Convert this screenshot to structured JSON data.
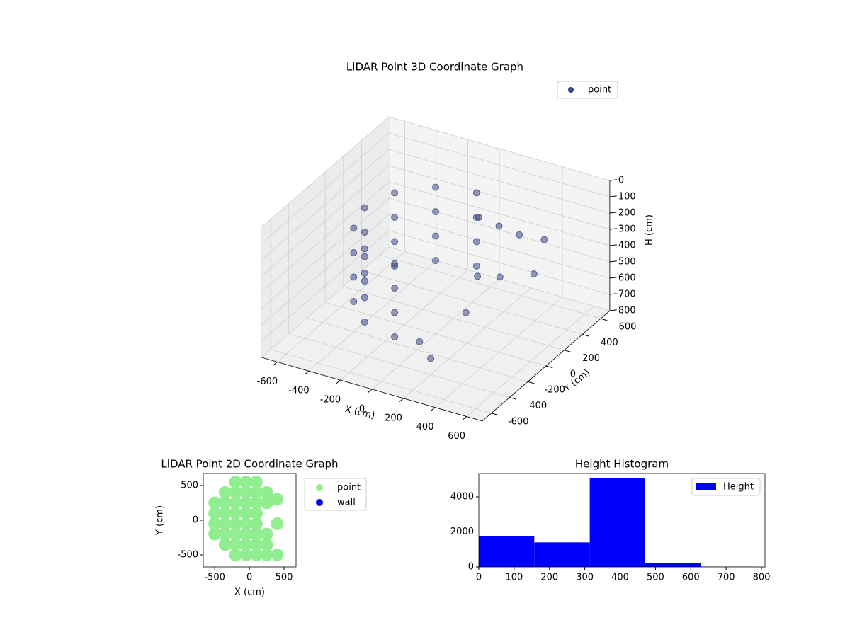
{
  "chart_data": [
    {
      "type": "scatter3d",
      "title": "LiDAR Point 3D Coordinate Graph",
      "xlabel": "X (cm)",
      "ylabel": "Y (cm)",
      "zlabel": "H (cm)",
      "series": [
        {
          "name": "point",
          "color": "#3e4a89",
          "x": [
            0,
            -225,
            -390,
            -450,
            -390,
            -225,
            0,
            0,
            -225,
            -390,
            -450,
            -390,
            -225,
            0,
            0,
            -225,
            -390,
            -450,
            -390,
            -225,
            0,
            0,
            -225,
            -390,
            -450,
            -390,
            -225,
            0,
            100,
            200,
            300,
            400,
            150,
            250,
            350,
            450,
            100,
            200
          ],
          "y": [
            450,
            390,
            225,
            0,
            -225,
            -390,
            -450,
            450,
            390,
            225,
            0,
            -225,
            -390,
            -450,
            450,
            390,
            225,
            0,
            -225,
            -390,
            -450,
            450,
            390,
            225,
            0,
            -225,
            -390,
            -450,
            300,
            350,
            400,
            500,
            200,
            -100,
            100,
            300,
            -350,
            -400
          ],
          "z": [
            150,
            150,
            150,
            150,
            150,
            150,
            150,
            300,
            300,
            300,
            300,
            300,
            300,
            300,
            450,
            450,
            450,
            450,
            450,
            450,
            450,
            600,
            600,
            600,
            600,
            600,
            600,
            600,
            200,
            250,
            300,
            350,
            500,
            550,
            400,
            450,
            650,
            700
          ]
        }
      ],
      "xlim": [
        -700,
        700
      ],
      "ylim": [
        -700,
        700
      ],
      "zlim": [
        800,
        0
      ],
      "xticks": [
        -600,
        -400,
        -200,
        0,
        200,
        400,
        600
      ],
      "yticks": [
        -600,
        -400,
        -200,
        0,
        200,
        400,
        600
      ],
      "zticks": [
        0,
        100,
        200,
        300,
        400,
        500,
        600,
        700,
        800
      ],
      "grid": true,
      "legend": "upper right"
    },
    {
      "type": "scatter",
      "title": "LiDAR Point 2D Coordinate Graph",
      "xlabel": "X (cm)",
      "ylabel": "Y (cm)",
      "series": [
        {
          "name": "point",
          "color": "#90ee90",
          "x": [
            -500,
            -500,
            -500,
            -500,
            -350,
            -350,
            -350,
            -350,
            -350,
            -350,
            -200,
            -200,
            -200,
            -200,
            -200,
            -200,
            -200,
            -200,
            -50,
            -50,
            -50,
            -50,
            -50,
            -50,
            -50,
            -50,
            100,
            100,
            100,
            100,
            100,
            100,
            100,
            100,
            250,
            250,
            250,
            250,
            250,
            400,
            400,
            400
          ],
          "y": [
            -200,
            -50,
            100,
            250,
            -350,
            -200,
            -50,
            100,
            250,
            400,
            -500,
            -350,
            -200,
            -50,
            100,
            250,
            400,
            550,
            -500,
            -350,
            -200,
            -50,
            100,
            250,
            400,
            550,
            -500,
            -350,
            -200,
            -50,
            100,
            250,
            400,
            550,
            -500,
            -350,
            -200,
            250,
            400,
            -500,
            -50,
            300
          ]
        },
        {
          "name": "wall",
          "color": "#0000ff",
          "x": [],
          "y": []
        }
      ],
      "xlim": [
        -665,
        673
      ],
      "ylim": [
        -673,
        673
      ],
      "xticks": [
        -500,
        0,
        500
      ],
      "yticks": [
        -500,
        0,
        500
      ],
      "legend": "outside right"
    },
    {
      "type": "histogram",
      "title": "Height Histogram",
      "name": "Height",
      "color": "#0000ff",
      "bins": [
        0,
        157,
        314,
        471,
        628,
        785
      ],
      "values": [
        1750,
        1400,
        5050,
        230,
        10
      ],
      "xlim": [
        0,
        810
      ],
      "ylim": [
        0,
        5333
      ],
      "xticks": [
        0,
        100,
        200,
        300,
        400,
        500,
        600,
        700,
        800
      ],
      "yticks": [
        0,
        2000,
        4000
      ],
      "legend": "upper right"
    }
  ]
}
